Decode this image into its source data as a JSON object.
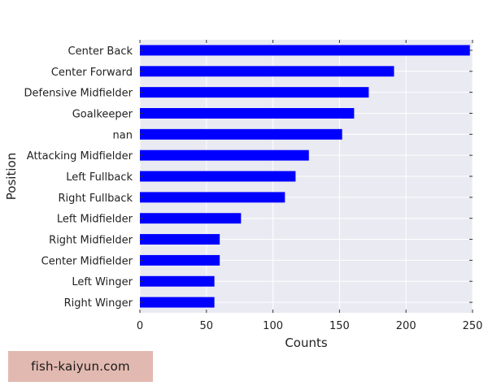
{
  "chart_data": {
    "type": "bar",
    "orientation": "horizontal",
    "categories": [
      "Center Back",
      "Center Forward",
      "Defensive Midfielder",
      "Goalkeeper",
      "nan",
      "Attacking Midfielder",
      "Left Fullback",
      "Right Fullback",
      "Left Midfielder",
      "Right Midfielder",
      "Center Midfielder",
      "Left Winger",
      "Right Winger"
    ],
    "values": [
      248,
      191,
      172,
      161,
      152,
      127,
      117,
      109,
      76,
      60,
      60,
      56,
      56
    ],
    "xlabel": "Counts",
    "ylabel": "Position",
    "xlim": [
      0,
      250
    ],
    "xticks": [
      0,
      50,
      100,
      150,
      200,
      250
    ],
    "grid": true,
    "bar_color": "#0000ff",
    "background_color": "#eaeaf2"
  },
  "watermark": "fish-kaiyun.com"
}
